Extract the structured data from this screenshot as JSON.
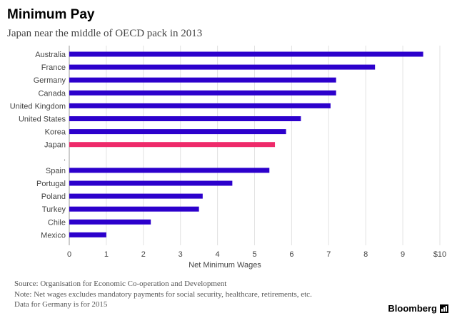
{
  "chart_data": {
    "type": "bar",
    "orientation": "horizontal",
    "title": "Minimum Pay",
    "subtitle": "Japan near the middle of OECD pack in 2013",
    "categories": [
      "Australia",
      "France",
      "Germany",
      "Canada",
      "United Kingdom",
      "United States",
      "Korea",
      "Japan",
      "",
      "Spain",
      "Portugal",
      "Poland",
      "Turkey",
      "Chile",
      "Mexico"
    ],
    "values": [
      9.55,
      8.25,
      7.2,
      7.2,
      7.05,
      6.25,
      5.85,
      5.55,
      null,
      5.4,
      4.4,
      3.6,
      3.5,
      2.2,
      1.0
    ],
    "highlight": "Japan",
    "bar_color": "#2c00cc",
    "highlight_color": "#ee2a6a",
    "xlabel": "Net Minimum Wages",
    "xlim": [
      0,
      10
    ],
    "xticks": [
      0,
      1,
      2,
      3,
      4,
      5,
      6,
      7,
      8,
      9,
      10
    ],
    "xtick_labels": [
      "0",
      "1",
      "2",
      "3",
      "4",
      "5",
      "6",
      "7",
      "8",
      "9",
      "$10"
    ],
    "separator_label": ".",
    "grid": true
  },
  "footer": {
    "source": "Source: Organisation for Economic Co-operation and Development",
    "note": "Note: Net wages excludes mandatory payments for social security, healthcare, retirements, etc.",
    "germany": "Data for Germany is for 2015"
  },
  "brand": {
    "name": "Bloomberg",
    "icon": "bloomberg-bars-icon"
  }
}
